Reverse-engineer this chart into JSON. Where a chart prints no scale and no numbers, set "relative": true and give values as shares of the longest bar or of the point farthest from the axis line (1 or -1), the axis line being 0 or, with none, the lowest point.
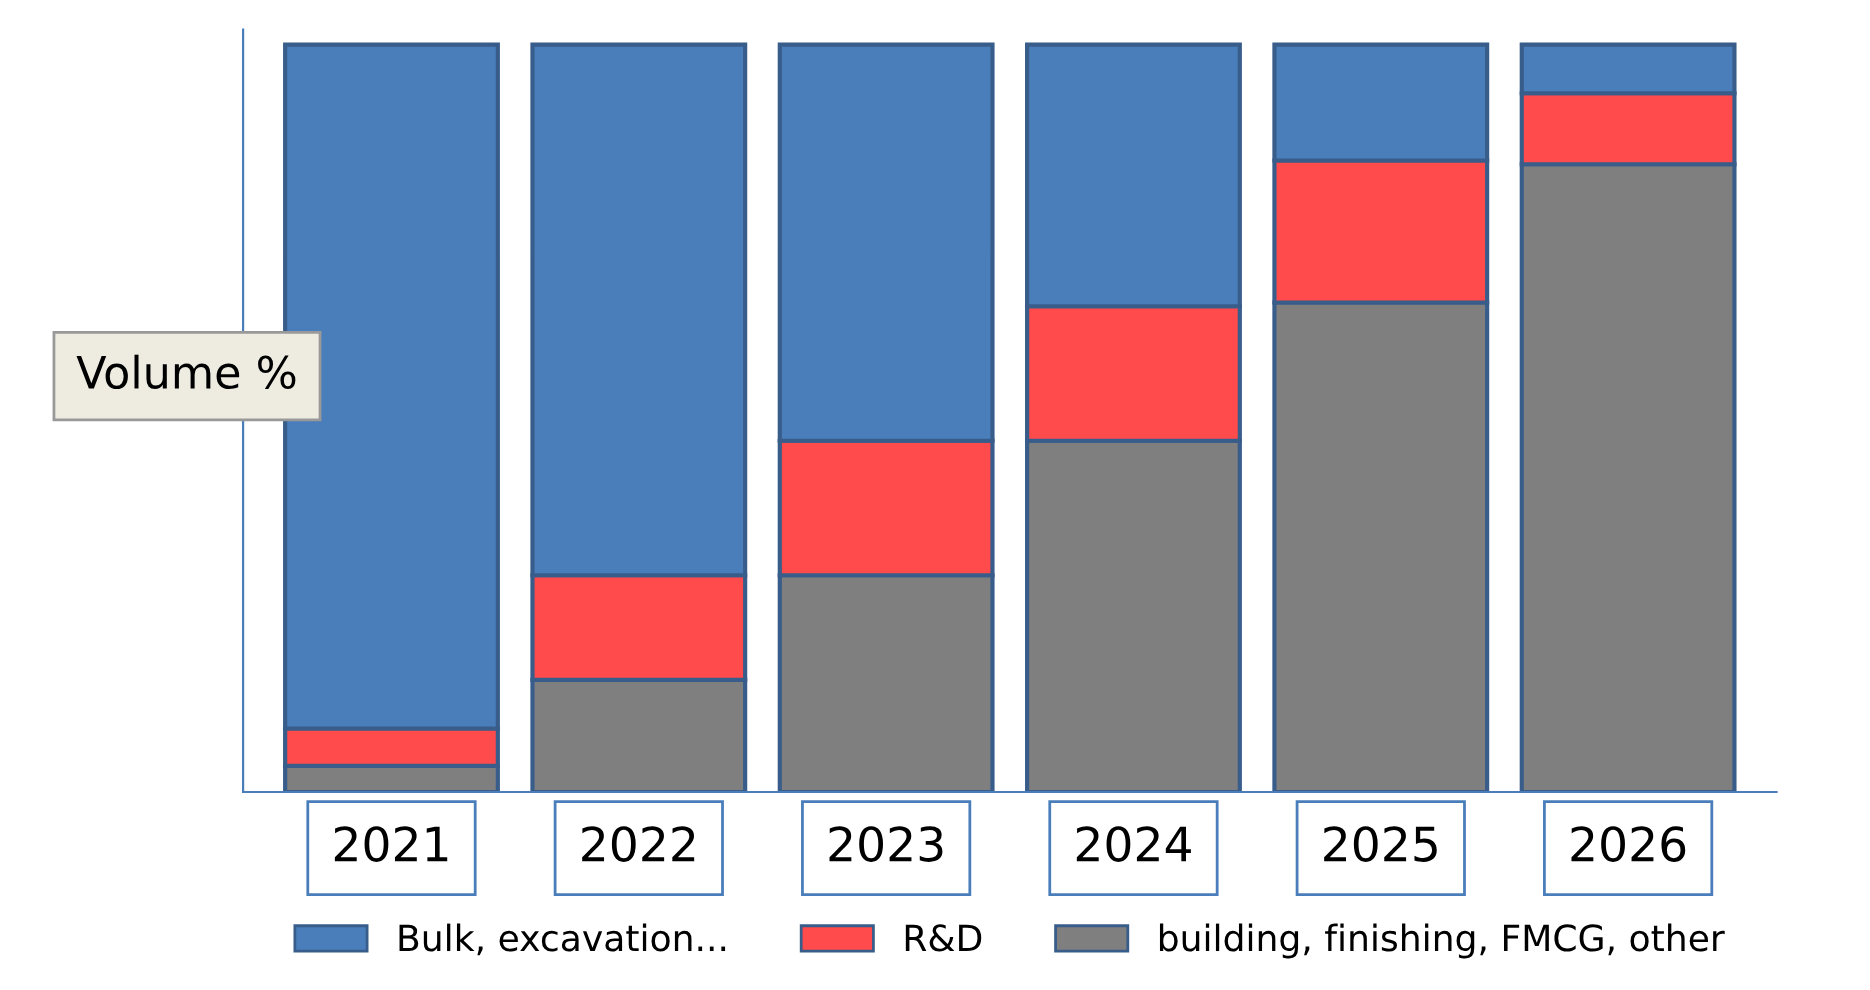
{
  "chart_data": {
    "type": "bar",
    "stacked": true,
    "relative": true,
    "ylabel": "Volume %",
    "categories": [
      "2021",
      "2022",
      "2023",
      "2024",
      "2025",
      "2026"
    ],
    "series": [
      {
        "name": "building, finishing, FMCG, other",
        "color": "#7f7f7f",
        "values": [
          0.035,
          0.15,
          0.29,
          0.47,
          0.655,
          0.84
        ]
      },
      {
        "name": "R&D",
        "color": "#ff4b4b",
        "values": [
          0.05,
          0.14,
          0.18,
          0.18,
          0.19,
          0.095
        ]
      },
      {
        "name": "Bulk, excavation...",
        "color": "#4a7ebb",
        "values": [
          0.915,
          0.71,
          0.53,
          0.35,
          0.155,
          0.065
        ]
      }
    ],
    "legend": "bottom",
    "grid": false
  }
}
